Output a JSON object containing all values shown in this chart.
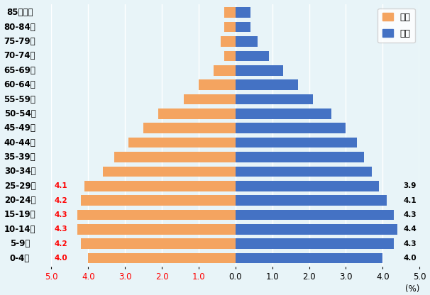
{
  "age_groups": [
    "0-4歳",
    "5-9歳",
    "10-14歳",
    "15-19歳",
    "20-24歳",
    "25-29歳",
    "30-34歳",
    "35-39歳",
    "40-44歳",
    "45-49歳",
    "50-54歳",
    "55-59歳",
    "60-64歳",
    "65-69歳",
    "70-74歳",
    "75-79歳",
    "80-84歳",
    "85歳以上"
  ],
  "female": [
    4.0,
    4.2,
    4.3,
    4.3,
    4.2,
    4.1,
    3.6,
    3.3,
    2.9,
    2.5,
    2.1,
    1.4,
    1.0,
    0.6,
    0.3,
    0.4,
    0.3,
    0.3
  ],
  "male": [
    4.0,
    4.3,
    4.4,
    4.3,
    4.1,
    3.9,
    3.7,
    3.5,
    3.3,
    3.0,
    2.6,
    2.1,
    1.7,
    1.3,
    0.9,
    0.6,
    0.4,
    0.4
  ],
  "female_labels": [
    4.0,
    4.2,
    4.3,
    4.3,
    4.2,
    4.1,
    null,
    null,
    null,
    null,
    null,
    null,
    null,
    null,
    null,
    null,
    null,
    null
  ],
  "male_labels": [
    4.0,
    4.3,
    4.4,
    4.3,
    4.1,
    3.9,
    null,
    null,
    null,
    null,
    null,
    null,
    null,
    null,
    null,
    null,
    null,
    null
  ],
  "female_color": "#f4a460",
  "male_color": "#4472c4",
  "background_color": "#e8f4f8",
  "xlabel": "(%)",
  "xlim": 5.0,
  "legend_female": "女性",
  "legend_male": "男性",
  "label_fontsize": 8.5,
  "tick_fontsize": 8.5,
  "annot_fontsize": 7.5
}
